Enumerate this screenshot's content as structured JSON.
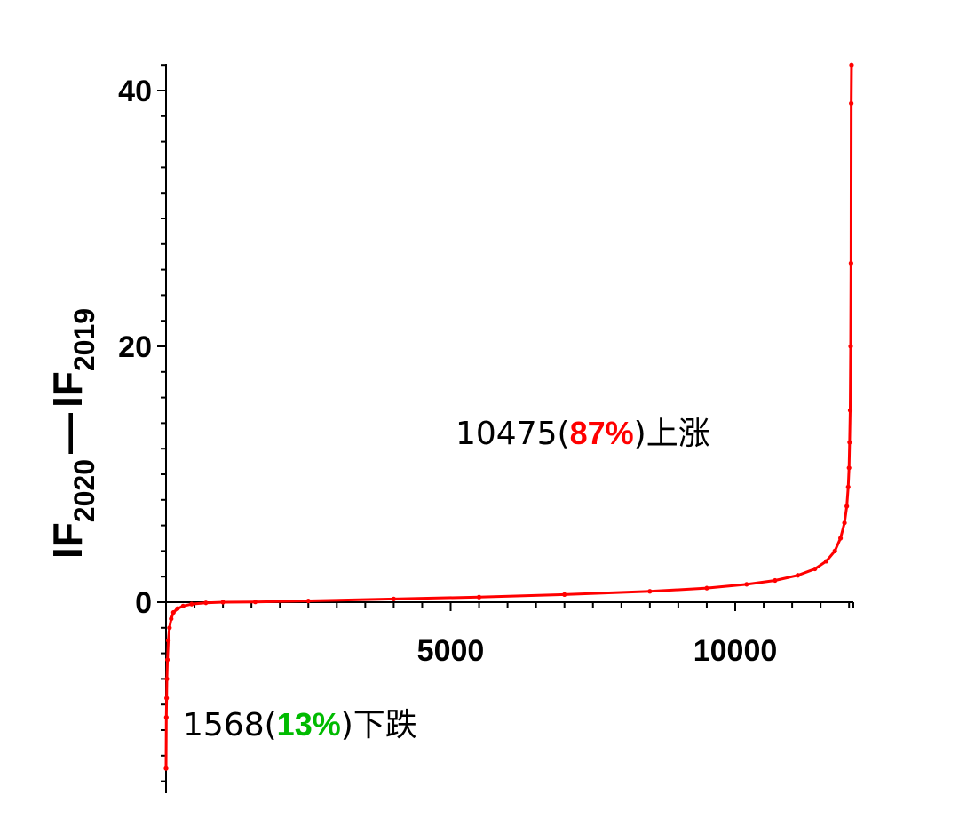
{
  "chart_data": {
    "type": "line",
    "title": "",
    "xlabel": "",
    "ylabel": {
      "main1": "IF",
      "sub1": "2020",
      "dash": "—",
      "main2": "IF",
      "sub2": "2019"
    },
    "xlim": [
      0,
      12043
    ],
    "ylim": [
      -14,
      42
    ],
    "x_ticks": [
      5000,
      10000
    ],
    "x_tick_labels": [
      "5000",
      "10000"
    ],
    "y_ticks": [
      0,
      20,
      40
    ],
    "y_tick_labels": [
      "0",
      "20",
      "40"
    ],
    "grid": false,
    "series": [
      {
        "color": "#ff0000",
        "points": [
          [
            0,
            -13
          ],
          [
            5,
            -9
          ],
          [
            10,
            -7.5
          ],
          [
            15,
            -6
          ],
          [
            25,
            -4.5
          ],
          [
            40,
            -3
          ],
          [
            60,
            -2
          ],
          [
            90,
            -1.3
          ],
          [
            130,
            -0.8
          ],
          [
            200,
            -0.5
          ],
          [
            300,
            -0.3
          ],
          [
            450,
            -0.15
          ],
          [
            700,
            -0.05
          ],
          [
            1000,
            0
          ],
          [
            1568,
            0.02
          ],
          [
            2500,
            0.1
          ],
          [
            4000,
            0.25
          ],
          [
            5500,
            0.4
          ],
          [
            7000,
            0.6
          ],
          [
            8500,
            0.85
          ],
          [
            9500,
            1.1
          ],
          [
            10200,
            1.4
          ],
          [
            10700,
            1.7
          ],
          [
            11100,
            2.1
          ],
          [
            11400,
            2.6
          ],
          [
            11600,
            3.2
          ],
          [
            11750,
            4.0
          ],
          [
            11850,
            5.0
          ],
          [
            11920,
            6.2
          ],
          [
            11960,
            7.5
          ],
          [
            11985,
            9.0
          ],
          [
            12000,
            10.5
          ],
          [
            12010,
            12.5
          ],
          [
            12020,
            15.0
          ],
          [
            12028,
            20.0
          ],
          [
            12034,
            26.5
          ],
          [
            12038,
            39.0
          ],
          [
            12043,
            42.0
          ]
        ]
      }
    ],
    "annotations": [
      {
        "count": "10475",
        "open": "(",
        "pct": "87%",
        "close": ")",
        "word": "上涨",
        "pct_color": "#ff0000"
      },
      {
        "count": "1568",
        "open": "(",
        "pct": "13%",
        "close": ")",
        "word": "下跌",
        "pct_color": "#00bb00"
      }
    ]
  }
}
